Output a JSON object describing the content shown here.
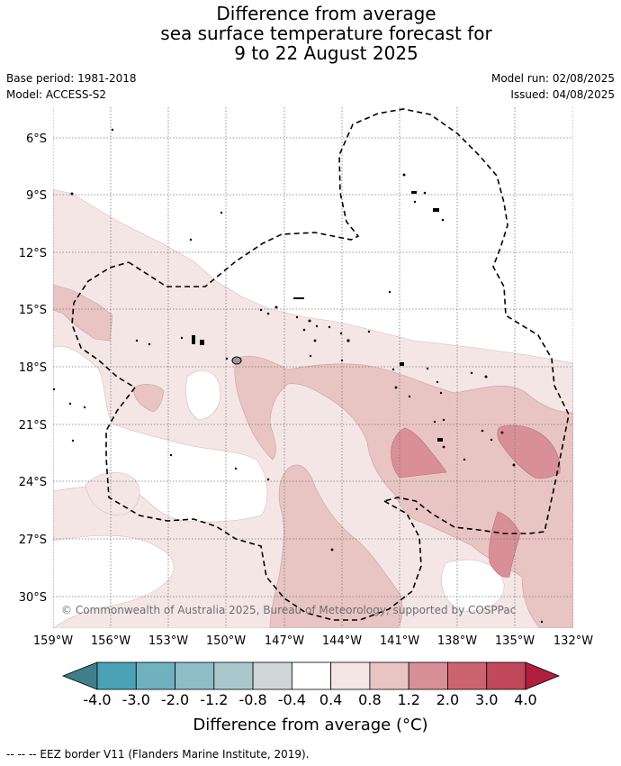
{
  "title": {
    "line1": "Difference from average",
    "line2": "sea surface temperature forecast for",
    "line3": "9 to 22 August 2025"
  },
  "meta": {
    "base_period": "Base period: 1981-2018",
    "model": "Model: ACCESS-S2",
    "model_run": "Model run: 02/08/2025",
    "issued": "Issued: 04/08/2025"
  },
  "axes": {
    "lat_labels": [
      "6°S",
      "9°S",
      "12°S",
      "15°S",
      "18°S",
      "21°S",
      "24°S",
      "27°S",
      "30°S"
    ],
    "lon_labels": [
      "159°W",
      "156°W",
      "153°W",
      "150°W",
      "147°W",
      "144°W",
      "141°W",
      "138°W",
      "135°W",
      "132°W"
    ]
  },
  "credit": "© Commonwealth of Australia 2025, Bureau of Meteorology, supported by COSPPac",
  "colorbar": {
    "title": "Difference from average (°C)",
    "labels": [
      "-4.0",
      "-3.0",
      "-2.0",
      "-1.2",
      "-0.8",
      "-0.4",
      "0.4",
      "0.8",
      "1.2",
      "2.0",
      "3.0",
      "4.0"
    ],
    "colors": [
      "#3f7f8a",
      "#4aa3b4",
      "#6fb1bf",
      "#8ebcc7",
      "#a9c8cd",
      "#cfd6d8",
      "#ffffff",
      "#f5e6e6",
      "#e8c5c3",
      "#d98f97",
      "#cc6470",
      "#c0485a",
      "#b21e3e"
    ]
  },
  "legend_line": "--  --  -- EEZ border V11 (Flanders Marine Institute, 2019).",
  "chart_data": {
    "type": "map",
    "lat_range": [
      "5°S",
      "32°S"
    ],
    "lon_range": [
      "159°W",
      "132°W"
    ],
    "anomaly_classes_present": [
      "-0.4 to 0.4",
      "0.4 to 0.8",
      "0.8 to 1.2",
      "1.2 to 2.0"
    ]
  }
}
